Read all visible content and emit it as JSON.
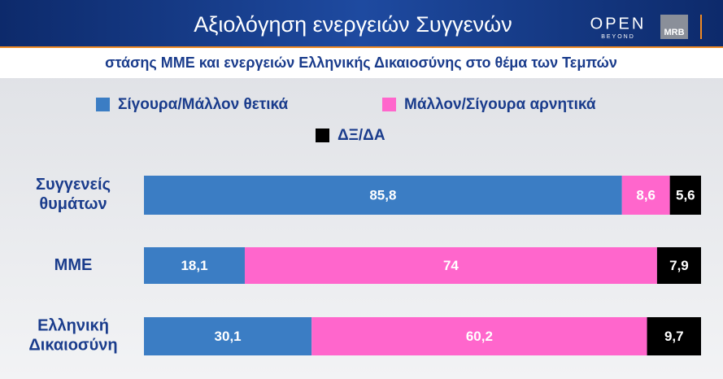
{
  "header": {
    "title": "Αξιολόγηση ενεργειών Συγγενών",
    "logo_open": "OPEN",
    "logo_open_sub": "BEYOND",
    "logo_mrb": "MRB"
  },
  "chart_data": {
    "type": "stacked-bar-horizontal",
    "subtitle": "στάσης ΜΜΕ και ενεργειών Ελληνικής Δικαιοσύνης στο θέμα των Τεμπών",
    "categories": [
      "Συγγενείς θυμάτων",
      "ΜΜΕ",
      "Ελληνική Δικαιοσύνη"
    ],
    "xlim": [
      0,
      100
    ],
    "series": [
      {
        "name": "Σίγουρα/Μάλλον θετικά",
        "color": "#3b7dc4",
        "values": [
          85.8,
          18.1,
          30.1
        ],
        "value_labels": [
          "85,8",
          "18,1",
          "30,1"
        ]
      },
      {
        "name": "Μάλλον/Σίγουρα αρνητικά",
        "color": "#ff66cc",
        "values": [
          8.6,
          74,
          60.2
        ],
        "value_labels": [
          "8,6",
          "74",
          "60,2"
        ]
      },
      {
        "name": "ΔΞ/ΔΑ",
        "color": "#000000",
        "values": [
          5.6,
          7.9,
          9.7
        ],
        "value_labels": [
          "5,6",
          "7,9",
          "9,7"
        ]
      }
    ]
  }
}
